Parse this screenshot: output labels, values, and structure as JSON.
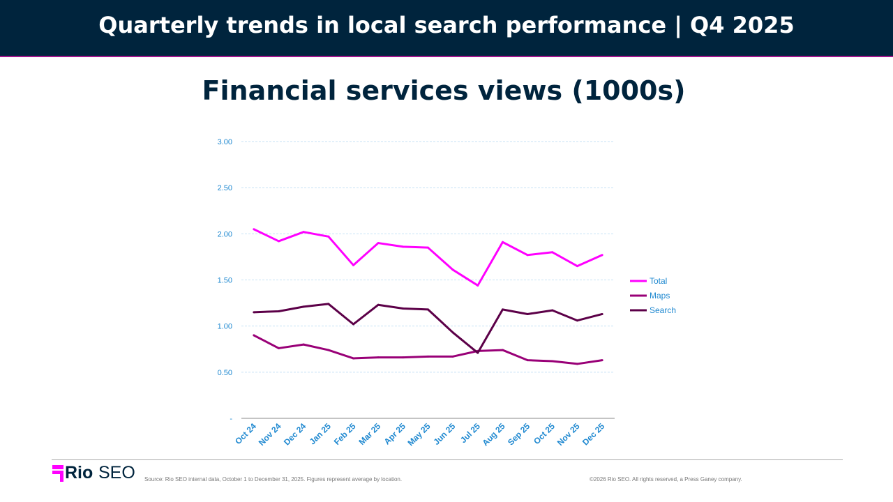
{
  "header": {
    "title": "Quarterly trends in local search performance  |  Q4 2025"
  },
  "chart_data": {
    "type": "line",
    "title": "Financial services views (1000s)",
    "categories": [
      "Oct 24",
      "Nov 24",
      "Dec 24",
      "Jan 25",
      "Feb 25",
      "Mar 25",
      "Apr 25",
      "May 25",
      "Jun 25",
      "Jul 25",
      "Aug 25",
      "Sep 25",
      "Oct 25",
      "Nov 25",
      "Dec 25"
    ],
    "ylim": [
      0,
      3
    ],
    "yticks": [
      0,
      0.5,
      1,
      1.5,
      2,
      2.5,
      3
    ],
    "ytick_labels": [
      "-",
      "0.50",
      "1.00",
      "1.50",
      "2.00",
      "2.50",
      "3.00"
    ],
    "grid": true,
    "legend": "right",
    "series": [
      {
        "name": "Total",
        "color": "#ff00ff",
        "values": [
          2.05,
          1.92,
          2.02,
          1.97,
          1.66,
          1.9,
          1.86,
          1.85,
          1.61,
          1.44,
          1.91,
          1.77,
          1.8,
          1.65,
          1.77
        ]
      },
      {
        "name": "Maps",
        "color": "#990077",
        "values": [
          0.9,
          0.76,
          0.8,
          0.74,
          0.65,
          0.66,
          0.66,
          0.67,
          0.67,
          0.73,
          0.74,
          0.63,
          0.62,
          0.59,
          0.63
        ]
      },
      {
        "name": "Search",
        "color": "#5c0048",
        "values": [
          1.15,
          1.16,
          1.21,
          1.24,
          1.02,
          1.23,
          1.19,
          1.18,
          0.93,
          0.71,
          1.18,
          1.13,
          1.17,
          1.06,
          1.13
        ]
      }
    ]
  },
  "footer": {
    "logo": "Rio SEO",
    "logo_rio": "Rio",
    "logo_seo": "SEO",
    "source": "Source: Rio SEO internal data, October 1 to December 31, 2025. Figures represent average by location.",
    "copyright": "©2026 Rio SEO.  All rights reserved, a Press Ganey company."
  },
  "colors": {
    "banner": "#00243d",
    "axis_text": "#1e88d0",
    "accent": "#ff00ff"
  }
}
